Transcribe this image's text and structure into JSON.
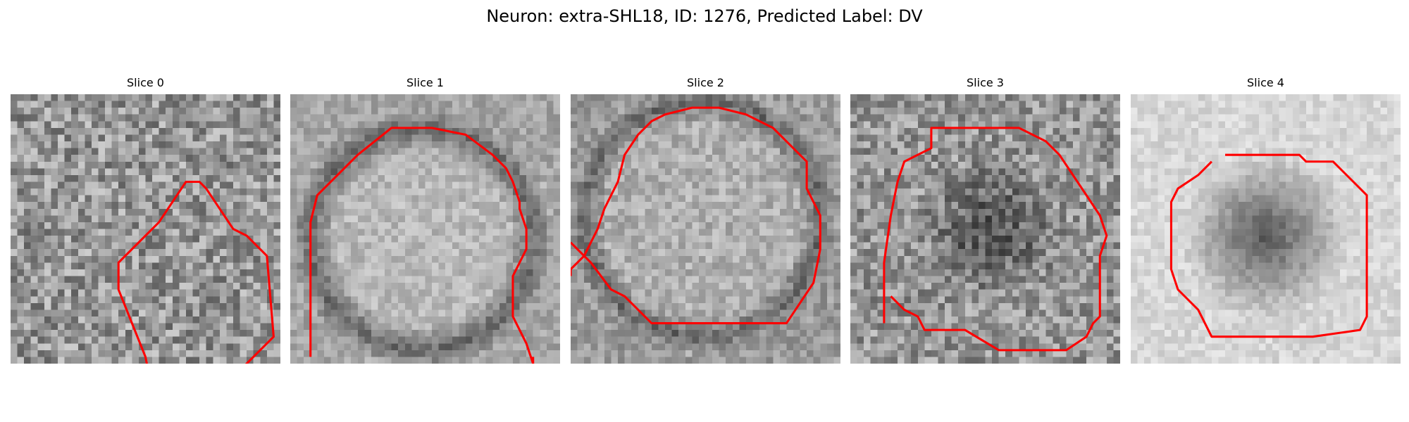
{
  "figure": {
    "title": "Neuron: extra-SHL18, ID: 1276, Predicted Label: DV"
  },
  "panels": [
    {
      "title": "Slice 0",
      "style": "noise",
      "base": 150,
      "noise": 55,
      "seed": 11,
      "contour": [
        [
          21,
          44
        ],
        [
          20,
          39
        ],
        [
          16,
          29
        ],
        [
          16,
          25
        ],
        [
          22,
          19
        ],
        [
          26,
          13
        ],
        [
          28,
          13
        ],
        [
          29,
          14
        ],
        [
          33,
          20
        ],
        [
          35,
          21
        ],
        [
          38,
          24
        ],
        [
          39,
          36
        ],
        [
          33,
          42
        ],
        [
          31,
          42
        ]
      ]
    },
    {
      "title": "Slice 1",
      "style": "ring",
      "base": 175,
      "noise": 25,
      "seed": 23,
      "cx": 19.5,
      "cy": 21.5,
      "r": 16.5,
      "ringW": 3.2,
      "ringDark": 70,
      "contour": [
        [
          3,
          39
        ],
        [
          3,
          37
        ],
        [
          3,
          31
        ],
        [
          3,
          26
        ],
        [
          3,
          19
        ],
        [
          4,
          15
        ],
        [
          9,
          10
        ],
        [
          10,
          9
        ],
        [
          15,
          5
        ],
        [
          21,
          5
        ],
        [
          26,
          6
        ],
        [
          30,
          9
        ],
        [
          32,
          11
        ],
        [
          33,
          13
        ],
        [
          34,
          16
        ],
        [
          34,
          17
        ],
        [
          35,
          20
        ],
        [
          35,
          23
        ],
        [
          34,
          25
        ],
        [
          33,
          27
        ],
        [
          33,
          30
        ],
        [
          33,
          33
        ],
        [
          35,
          37
        ],
        [
          36,
          40
        ],
        [
          36,
          39
        ]
      ]
    },
    {
      "title": "Slice 2",
      "style": "ring",
      "base": 165,
      "noise": 30,
      "seed": 37,
      "cx": 19.5,
      "cy": 18.5,
      "r": 17.5,
      "ringW": 2.6,
      "ringDark": 60,
      "contour": [
        [
          0,
          27
        ],
        [
          0,
          26
        ],
        [
          2,
          24
        ],
        [
          4,
          20
        ],
        [
          5,
          17
        ],
        [
          7,
          13
        ],
        [
          8,
          9
        ],
        [
          10,
          6
        ],
        [
          12,
          4
        ],
        [
          14,
          3
        ],
        [
          18,
          2
        ],
        [
          22,
          2
        ],
        [
          26,
          3
        ],
        [
          30,
          5
        ],
        [
          32,
          7
        ],
        [
          35,
          10
        ],
        [
          35,
          14
        ],
        [
          37,
          18
        ],
        [
          37,
          23
        ],
        [
          36,
          28
        ],
        [
          34,
          31
        ],
        [
          32,
          34
        ],
        [
          30,
          34
        ],
        [
          25,
          34
        ],
        [
          20,
          34
        ],
        [
          16,
          34
        ],
        [
          12,
          34
        ],
        [
          9,
          31
        ],
        [
          8,
          30
        ],
        [
          6,
          29
        ],
        [
          3,
          25
        ],
        [
          0,
          22
        ]
      ]
    },
    {
      "title": "Slice 3",
      "style": "blob",
      "base": 150,
      "noise": 50,
      "seed": 53,
      "cx": 21,
      "cy": 20,
      "r": 11,
      "blobDark": 80,
      "contour": [
        [
          5,
          34
        ],
        [
          5,
          33
        ],
        [
          5,
          31
        ],
        [
          5,
          28
        ],
        [
          5,
          25
        ],
        [
          6,
          18
        ],
        [
          7,
          13
        ],
        [
          8,
          10
        ],
        [
          10,
          9
        ],
        [
          12,
          8
        ],
        [
          12,
          5
        ],
        [
          18,
          5
        ],
        [
          25,
          5
        ],
        [
          29,
          7
        ],
        [
          31,
          9
        ],
        [
          33,
          12
        ],
        [
          35,
          15
        ],
        [
          37,
          18
        ],
        [
          38,
          21
        ],
        [
          37,
          24
        ],
        [
          37,
          27
        ],
        [
          37,
          31
        ],
        [
          37,
          33
        ],
        [
          36,
          34
        ],
        [
          35,
          36
        ],
        [
          32,
          38
        ],
        [
          30,
          38
        ],
        [
          25,
          38
        ],
        [
          22,
          38
        ],
        [
          17,
          35
        ],
        [
          11,
          35
        ],
        [
          10,
          33
        ],
        [
          8,
          32
        ],
        [
          6,
          30
        ]
      ]
    },
    {
      "title": "Slice 4",
      "style": "blob",
      "base": 215,
      "noise": 18,
      "seed": 71,
      "cx": 20,
      "cy": 21,
      "r": 12.5,
      "blobDark": 130,
      "contour": [
        [
          14,
          9
        ],
        [
          20,
          9
        ],
        [
          25,
          9
        ],
        [
          26,
          10
        ],
        [
          30,
          10
        ],
        [
          33,
          13
        ],
        [
          35,
          15
        ],
        [
          35,
          20
        ],
        [
          35,
          25
        ],
        [
          35,
          30
        ],
        [
          35,
          33
        ],
        [
          34,
          35
        ],
        [
          27,
          36
        ],
        [
          20,
          36
        ],
        [
          14,
          36
        ],
        [
          12,
          36
        ],
        [
          10,
          32
        ],
        [
          7,
          29
        ],
        [
          6,
          26
        ],
        [
          6,
          21
        ],
        [
          6,
          16
        ],
        [
          7,
          14
        ],
        [
          10,
          12
        ],
        [
          12,
          10
        ]
      ]
    }
  ],
  "colors": {
    "contour": "#ff0000",
    "background": "#ffffff"
  }
}
